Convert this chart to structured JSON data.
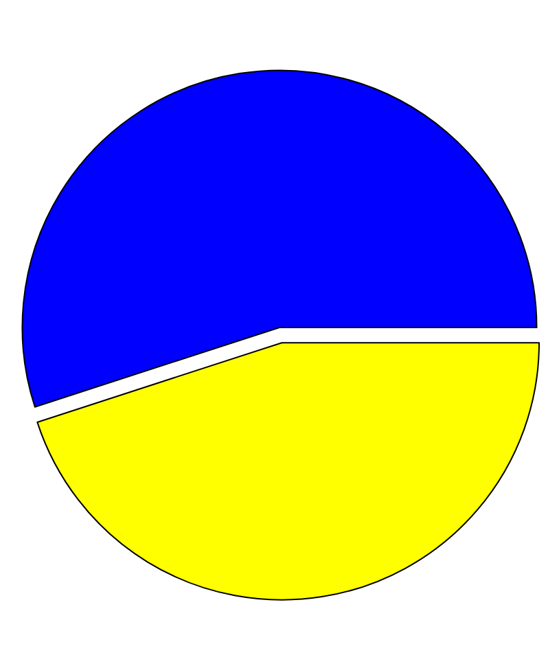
{
  "chart_data": {
    "type": "pie",
    "categories": [
      null,
      null
    ],
    "values": [
      45,
      55
    ],
    "colors": [
      "#ffff00",
      "#0000ff"
    ],
    "legend": false
  }
}
